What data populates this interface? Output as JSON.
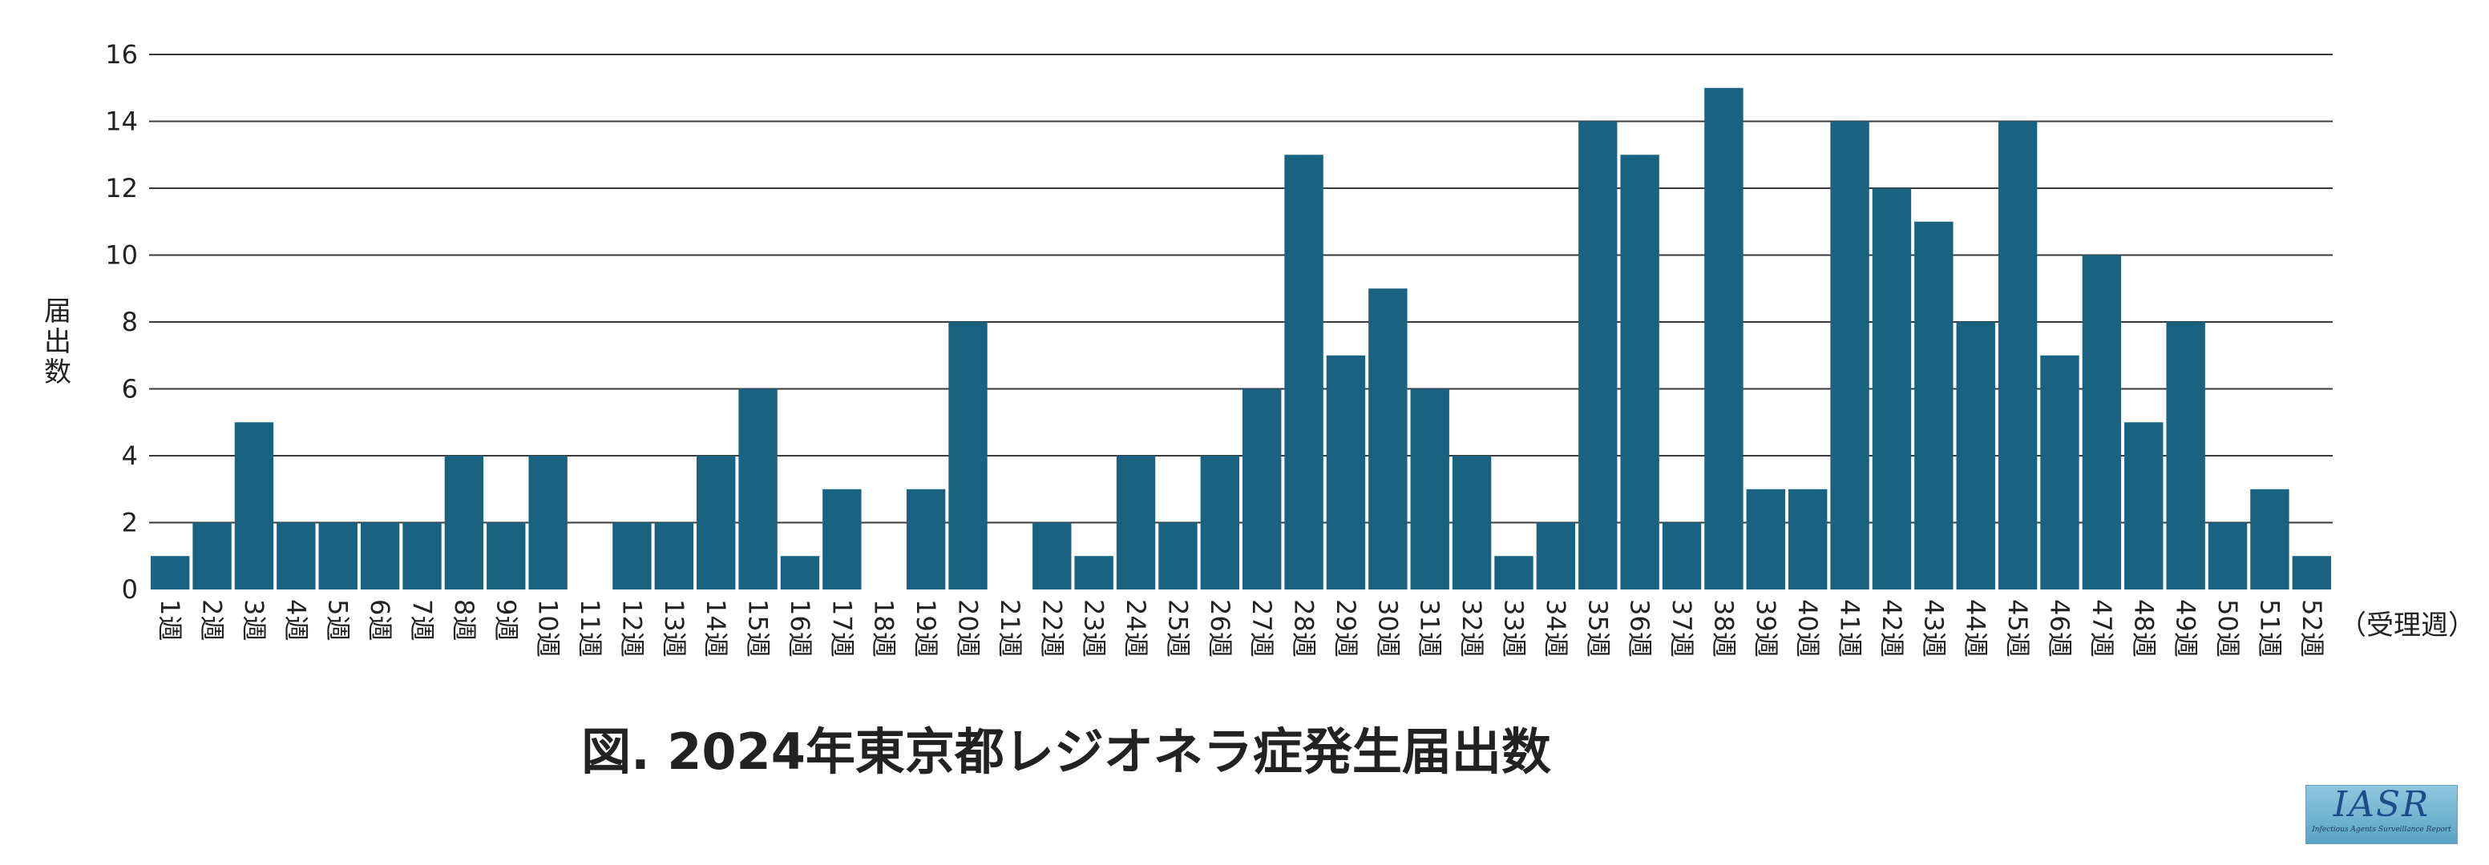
{
  "title": "図. 2024年東京都レジオネラ症発生届出数",
  "logo": {
    "main": "IASR",
    "sub": "Infectious Agents Surveillance Report"
  },
  "chart_data": {
    "type": "bar",
    "ylabel": "届出数",
    "xunit": "（受理週）",
    "ylim": [
      0,
      16
    ],
    "yticks": [
      0,
      2,
      4,
      6,
      8,
      10,
      12,
      14,
      16
    ],
    "grid": true,
    "bar_color": "#1a6282",
    "categories": [
      "1週",
      "2週",
      "3週",
      "4週",
      "5週",
      "6週",
      "7週",
      "8週",
      "9週",
      "10週",
      "11週",
      "12週",
      "13週",
      "14週",
      "15週",
      "16週",
      "17週",
      "18週",
      "19週",
      "20週",
      "21週",
      "22週",
      "23週",
      "24週",
      "25週",
      "26週",
      "27週",
      "28週",
      "29週",
      "30週",
      "31週",
      "32週",
      "33週",
      "34週",
      "35週",
      "36週",
      "37週",
      "38週",
      "39週",
      "40週",
      "41週",
      "42週",
      "43週",
      "44週",
      "45週",
      "46週",
      "47週",
      "48週",
      "49週",
      "50週",
      "51週",
      "52週"
    ],
    "values": [
      1,
      2,
      5,
      2,
      2,
      2,
      2,
      4,
      2,
      4,
      0,
      2,
      2,
      4,
      6,
      1,
      3,
      0,
      3,
      8,
      0,
      2,
      1,
      4,
      2,
      4,
      6,
      13,
      7,
      9,
      6,
      4,
      1,
      2,
      14,
      13,
      2,
      15,
      3,
      3,
      14,
      12,
      11,
      8,
      14,
      7,
      10,
      5,
      8,
      2,
      3,
      1
    ]
  }
}
